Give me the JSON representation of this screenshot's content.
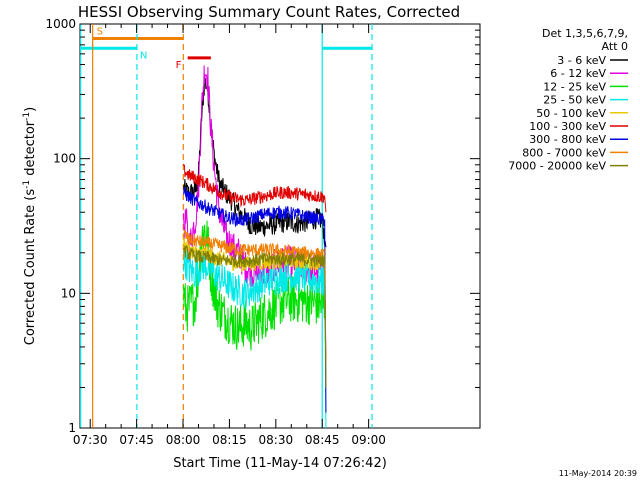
{
  "chart_data": {
    "type": "line",
    "title": "HESSI Observing Summary Count Rates, Corrected",
    "xlabel": "Start Time (11-May-14 07:26:42)",
    "ylabel_main": "Corrected Count Rate (s",
    "ylabel_sup1": "-1",
    "ylabel_mid": " detector",
    "ylabel_sup2": "-1",
    "ylabel_end": ")",
    "yscale": "log",
    "ylim": [
      1,
      1000
    ],
    "xlim_min": [
      446.7,
      576
    ],
    "x_ticks": [
      {
        "t": 450,
        "label": "07:30"
      },
      {
        "t": 465,
        "label": "07:45"
      },
      {
        "t": 480,
        "label": "08:00"
      },
      {
        "t": 495,
        "label": "08:15"
      },
      {
        "t": 510,
        "label": "08:30"
      },
      {
        "t": 525,
        "label": "08:45"
      },
      {
        "t": 540,
        "label": "09:00"
      }
    ],
    "y_ticks": [
      {
        "v": 1,
        "label": "1"
      },
      {
        "v": 10,
        "label": "10"
      },
      {
        "v": 100,
        "label": "100"
      },
      {
        "v": 1000,
        "label": "1000"
      }
    ],
    "legend": {
      "header1": "Det 1,3,5,6,7,9,",
      "header2": "Att 0",
      "entries": [
        {
          "label": "3 - 6 keV",
          "color": "#000000"
        },
        {
          "label": "6 - 12 keV",
          "color": "#e000e0"
        },
        {
          "label": "12 - 25 keV",
          "color": "#00e000"
        },
        {
          "label": "25 - 50 keV",
          "color": "#00e8e8"
        },
        {
          "label": "50 - 100 keV",
          "color": "#e8c800"
        },
        {
          "label": "100 - 300 keV",
          "color": "#e00000"
        },
        {
          "label": "300 - 800 keV",
          "color": "#0000e0"
        },
        {
          "label": "800 - 7000 keV",
          "color": "#f08000"
        },
        {
          "label": "7000 - 20000 keV",
          "color": "#808000"
        }
      ]
    },
    "flags": [
      {
        "label": "S",
        "color": "#f08000",
        "t_start": 450.8,
        "t_end": 480.1,
        "level": 780
      },
      {
        "label": "N",
        "color": "#00e8e8",
        "t_start": 446.7,
        "t_end": 465.1,
        "level": 660
      },
      {
        "label": "N",
        "color": "#00e8e8",
        "t_start": 525.0,
        "t_end": 541.1,
        "level": 660
      },
      {
        "label": "F",
        "color": "#e00000",
        "t_start": 481.5,
        "t_end": 489.0,
        "level": 560
      }
    ],
    "vlines": [
      {
        "t": 446.9,
        "color": "#00e8e8",
        "style": "solid"
      },
      {
        "t": 450.8,
        "color": "#f08000",
        "style": "solid"
      },
      {
        "t": 465.1,
        "color": "#00e8e8",
        "style": "dashed"
      },
      {
        "t": 480.1,
        "color": "#f08000",
        "style": "dashed"
      },
      {
        "t": 525.0,
        "color": "#00e8e8",
        "style": "solid"
      },
      {
        "t": 541.1,
        "color": "#00e8e8",
        "style": "dashed"
      }
    ],
    "series_time_range": [
      480.2,
      526.2
    ],
    "series": [
      {
        "name": "3 - 6 keV",
        "color": "#000000",
        "points": [
          [
            480.2,
            60
          ],
          [
            482,
            55
          ],
          [
            484,
            58
          ],
          [
            485,
            75
          ],
          [
            486,
            200
          ],
          [
            487,
            380
          ],
          [
            488,
            330
          ],
          [
            489,
            180
          ],
          [
            490,
            110
          ],
          [
            491,
            80
          ],
          [
            492,
            64
          ],
          [
            494,
            55
          ],
          [
            496,
            48
          ],
          [
            498,
            40
          ],
          [
            500,
            36
          ],
          [
            502,
            32
          ],
          [
            505,
            31
          ],
          [
            508,
            32
          ],
          [
            511,
            33
          ],
          [
            514,
            34
          ],
          [
            517,
            33
          ],
          [
            520,
            34
          ],
          [
            523,
            36
          ],
          [
            525,
            35
          ],
          [
            526.2,
            22
          ]
        ]
      },
      {
        "name": "6 - 12 keV",
        "color": "#e000e0",
        "points": [
          [
            480.2,
            30
          ],
          [
            481,
            35
          ],
          [
            482,
            22
          ],
          [
            483,
            28
          ],
          [
            484,
            35
          ],
          [
            485,
            60
          ],
          [
            486,
            230
          ],
          [
            487,
            480
          ],
          [
            488,
            400
          ],
          [
            489,
            170
          ],
          [
            490,
            90
          ],
          [
            491,
            55
          ],
          [
            492,
            38
          ],
          [
            494,
            26
          ],
          [
            496,
            22
          ],
          [
            498,
            20
          ],
          [
            500,
            16
          ],
          [
            503,
            14
          ],
          [
            506,
            14
          ],
          [
            509,
            16
          ],
          [
            512,
            17
          ],
          [
            515,
            17
          ],
          [
            518,
            16
          ],
          [
            521,
            15
          ],
          [
            524,
            15
          ],
          [
            525.8,
            13
          ],
          [
            526.2,
            3
          ]
        ]
      },
      {
        "name": "12 - 25 keV",
        "color": "#00e000",
        "points": [
          [
            480.2,
            10
          ],
          [
            481,
            7.5
          ],
          [
            482,
            8
          ],
          [
            484,
            9
          ],
          [
            485,
            14
          ],
          [
            486,
            26
          ],
          [
            487,
            30
          ],
          [
            488,
            24
          ],
          [
            489,
            14
          ],
          [
            490,
            11
          ],
          [
            491,
            8.5
          ],
          [
            493,
            7
          ],
          [
            496,
            6
          ],
          [
            498,
            5.5
          ],
          [
            500,
            6
          ],
          [
            502,
            5.5
          ],
          [
            505,
            6.5
          ],
          [
            508,
            7.5
          ],
          [
            511,
            8.5
          ],
          [
            514,
            9
          ],
          [
            517,
            9
          ],
          [
            520,
            8.8
          ],
          [
            523,
            8.5
          ],
          [
            525.8,
            8
          ],
          [
            526.2,
            3
          ]
        ]
      },
      {
        "name": "25 - 50 keV",
        "color": "#00e8e8",
        "points": [
          [
            480.2,
            18
          ],
          [
            482,
            15
          ],
          [
            484,
            14
          ],
          [
            486,
            16
          ],
          [
            488,
            16
          ],
          [
            490,
            14
          ],
          [
            492,
            13
          ],
          [
            494,
            12
          ],
          [
            496,
            11
          ],
          [
            498,
            10.5
          ],
          [
            500,
            10
          ],
          [
            502,
            10.5
          ],
          [
            505,
            11.5
          ],
          [
            508,
            12.5
          ],
          [
            511,
            13
          ],
          [
            514,
            13.5
          ],
          [
            517,
            13.5
          ],
          [
            520,
            13
          ],
          [
            523,
            12.5
          ],
          [
            525.8,
            12
          ],
          [
            526.2,
            1
          ]
        ]
      },
      {
        "name": "50 - 100 keV",
        "color": "#e8c800",
        "points": [
          [
            480.2,
            24
          ],
          [
            482,
            21
          ],
          [
            484,
            20
          ],
          [
            486,
            20
          ],
          [
            488,
            19.5
          ],
          [
            490,
            18.5
          ],
          [
            492,
            18
          ],
          [
            494,
            17.5
          ],
          [
            496,
            17
          ],
          [
            498,
            16.5
          ],
          [
            500,
            16.5
          ],
          [
            503,
            16.8
          ],
          [
            506,
            17
          ],
          [
            509,
            17.2
          ],
          [
            512,
            17.5
          ],
          [
            515,
            17.5
          ],
          [
            518,
            17.2
          ],
          [
            521,
            17
          ],
          [
            524,
            17
          ],
          [
            525.8,
            16.5
          ],
          [
            526.2,
            2
          ]
        ]
      },
      {
        "name": "100 - 300 keV",
        "color": "#e00000",
        "points": [
          [
            480.2,
            82
          ],
          [
            482,
            75
          ],
          [
            484,
            72
          ],
          [
            486,
            68
          ],
          [
            488,
            64
          ],
          [
            490,
            60
          ],
          [
            492,
            56
          ],
          [
            494,
            53
          ],
          [
            496,
            51
          ],
          [
            498,
            50
          ],
          [
            500,
            49
          ],
          [
            502,
            50
          ],
          [
            505,
            52
          ],
          [
            508,
            54
          ],
          [
            511,
            56
          ],
          [
            514,
            56
          ],
          [
            517,
            55
          ],
          [
            520,
            54
          ],
          [
            523,
            53
          ],
          [
            525.8,
            52
          ],
          [
            526.2,
            40
          ]
        ]
      },
      {
        "name": "300 - 800 keV",
        "color": "#0000e0",
        "points": [
          [
            480.2,
            56
          ],
          [
            482,
            52
          ],
          [
            484,
            48
          ],
          [
            486,
            46
          ],
          [
            488,
            43
          ],
          [
            490,
            41
          ],
          [
            492,
            39
          ],
          [
            494,
            37
          ],
          [
            496,
            36
          ],
          [
            498,
            35
          ],
          [
            500,
            35
          ],
          [
            502,
            36
          ],
          [
            505,
            38
          ],
          [
            508,
            39.5
          ],
          [
            511,
            40
          ],
          [
            514,
            39.5
          ],
          [
            517,
            38.5
          ],
          [
            520,
            37
          ],
          [
            523,
            36
          ],
          [
            525.8,
            35
          ],
          [
            526.2,
            1.3
          ]
        ]
      },
      {
        "name": "800 - 7000 keV",
        "color": "#f08000",
        "points": [
          [
            480.2,
            28
          ],
          [
            482,
            25
          ],
          [
            484,
            24.5
          ],
          [
            486,
            24
          ],
          [
            488,
            23.5
          ],
          [
            490,
            23
          ],
          [
            492,
            22.5
          ],
          [
            494,
            22
          ],
          [
            496,
            21.5
          ],
          [
            498,
            21
          ],
          [
            500,
            21
          ],
          [
            503,
            21
          ],
          [
            506,
            21
          ],
          [
            509,
            21
          ],
          [
            512,
            20.5
          ],
          [
            515,
            20.5
          ],
          [
            518,
            20
          ],
          [
            521,
            20
          ],
          [
            524,
            19.5
          ],
          [
            525.8,
            19
          ],
          [
            526.2,
            3
          ]
        ]
      },
      {
        "name": "7000 - 20000 keV",
        "color": "#808000",
        "points": [
          [
            480.2,
            21
          ],
          [
            482,
            19.5
          ],
          [
            484,
            19
          ],
          [
            486,
            18.5
          ],
          [
            488,
            18.5
          ],
          [
            490,
            18
          ],
          [
            493,
            17.5
          ],
          [
            496,
            17.5
          ],
          [
            499,
            17.5
          ],
          [
            502,
            17.5
          ],
          [
            505,
            17.8
          ],
          [
            508,
            18
          ],
          [
            511,
            18
          ],
          [
            514,
            18
          ],
          [
            517,
            18
          ],
          [
            520,
            17.8
          ],
          [
            523,
            17.5
          ],
          [
            525.8,
            17.5
          ],
          [
            526.2,
            2
          ]
        ]
      }
    ]
  },
  "footer": {
    "timestamp": "11-May-2014 20:39"
  }
}
